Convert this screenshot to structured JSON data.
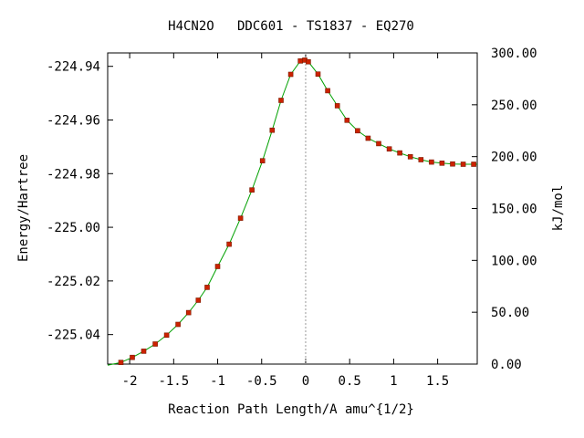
{
  "chart_data": {
    "type": "line",
    "title": "H4CN2O   DDC601 - TS1837 - EQ270",
    "xlabel": "Reaction Path Length/A amu^{1/2}",
    "ylabel_left": "Energy/Hartree",
    "ylabel_right": "kJ/mol",
    "xlim": [
      -2.25,
      1.95
    ],
    "ylim_left": [
      -225.051,
      -224.935
    ],
    "ylim_right": [
      0.0,
      300.0
    ],
    "x_ticks": [
      {
        "value": -2,
        "label": "-2"
      },
      {
        "value": -1.5,
        "label": "-1.5"
      },
      {
        "value": -1,
        "label": "-1"
      },
      {
        "value": -0.5,
        "label": "-0.5"
      },
      {
        "value": 0,
        "label": "0"
      },
      {
        "value": 0.5,
        "label": "0.5"
      },
      {
        "value": 1,
        "label": "1"
      },
      {
        "value": 1.5,
        "label": "1.5"
      }
    ],
    "y_left_ticks": [
      {
        "value": -224.94,
        "label": "-224.94"
      },
      {
        "value": -224.96,
        "label": "-224.96"
      },
      {
        "value": -224.98,
        "label": "-224.98"
      },
      {
        "value": -225.0,
        "label": "-225.00"
      },
      {
        "value": -225.02,
        "label": "-225.02"
      },
      {
        "value": -225.04,
        "label": "-225.04"
      }
    ],
    "y_right_ticks": [
      {
        "value": 300,
        "label": "300.00"
      },
      {
        "value": 250,
        "label": "250.00"
      },
      {
        "value": 200,
        "label": "200.00"
      },
      {
        "value": 150,
        "label": "150.00"
      },
      {
        "value": 100,
        "label": "100.00"
      },
      {
        "value": 50,
        "label": "50.00"
      },
      {
        "value": 0,
        "label": "0.00"
      }
    ],
    "ts_marker_x": 0,
    "line_color": "#00a000",
    "point_color": "#cc2200",
    "series": [
      {
        "x": [
          -2.1,
          -1.97,
          -1.84,
          -1.71,
          -1.58,
          -1.45,
          -1.33,
          -1.22,
          -1.12,
          -1.0,
          -0.87,
          -0.74,
          -0.61,
          -0.49,
          -0.38,
          -0.28,
          -0.17,
          -0.06,
          -0.01,
          0.03,
          0.14,
          0.25,
          0.36,
          0.47,
          0.59,
          0.71,
          0.83,
          0.95,
          1.07,
          1.19,
          1.31,
          1.43,
          1.55,
          1.67,
          1.79,
          1.91
        ],
        "y": [
          -225.0504,
          -225.0485,
          -225.0462,
          -225.0435,
          -225.0402,
          -225.0362,
          -225.0318,
          -225.0272,
          -225.0224,
          -225.0146,
          -225.0063,
          -224.9966,
          -224.9861,
          -224.9752,
          -224.9638,
          -224.9527,
          -224.943,
          -224.938,
          -224.9377,
          -224.9383,
          -224.9429,
          -224.9491,
          -224.9547,
          -224.9601,
          -224.964,
          -224.9668,
          -224.9688,
          -224.9708,
          -224.9723,
          -224.9737,
          -224.9748,
          -224.9757,
          -224.9761,
          -224.9764,
          -224.9765,
          -224.9765
        ]
      }
    ]
  }
}
